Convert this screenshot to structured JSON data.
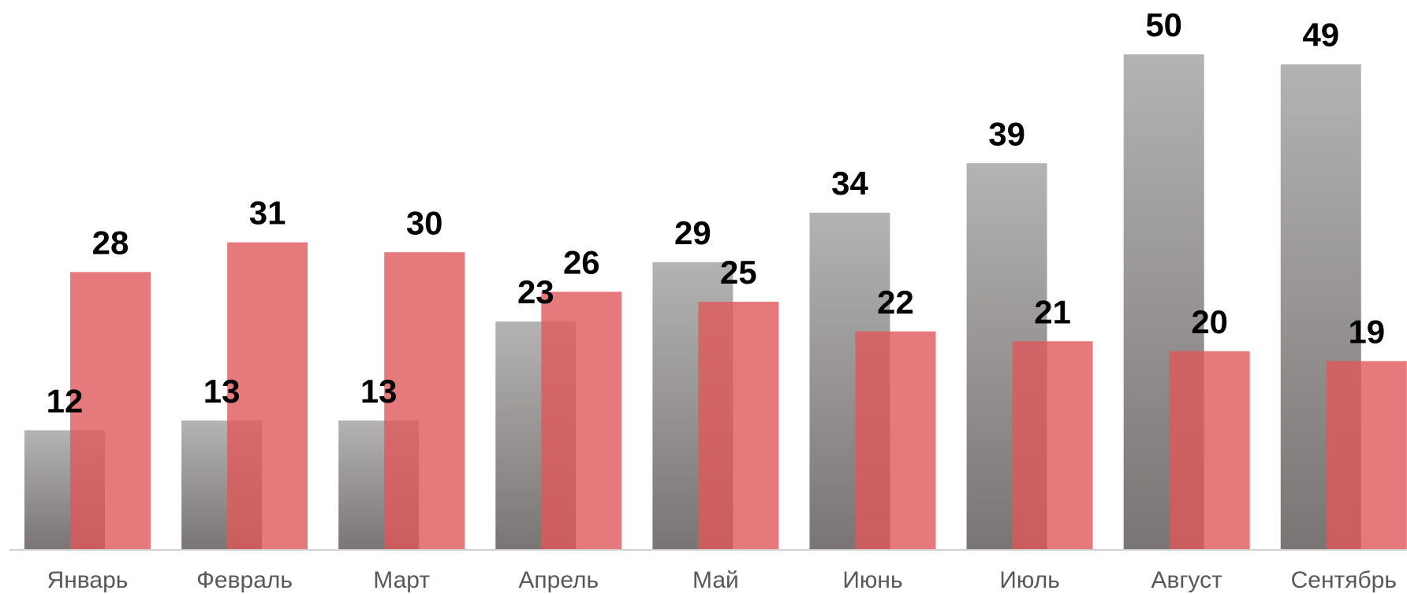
{
  "chart_data": {
    "type": "bar",
    "categories": [
      "Январь",
      "Февраль",
      "Март",
      "Апрель",
      "Май",
      "Июнь",
      "Июль",
      "Август",
      "Сентябрь"
    ],
    "series": [
      {
        "color": "#9a9796",
        "values": [
          12,
          13,
          13,
          23,
          29,
          34,
          39,
          50,
          49
        ]
      },
      {
        "color": "#e0585a",
        "values": [
          28,
          31,
          30,
          26,
          25,
          22,
          21,
          20,
          19
        ]
      }
    ],
    "ylim": [
      0,
      50
    ]
  }
}
